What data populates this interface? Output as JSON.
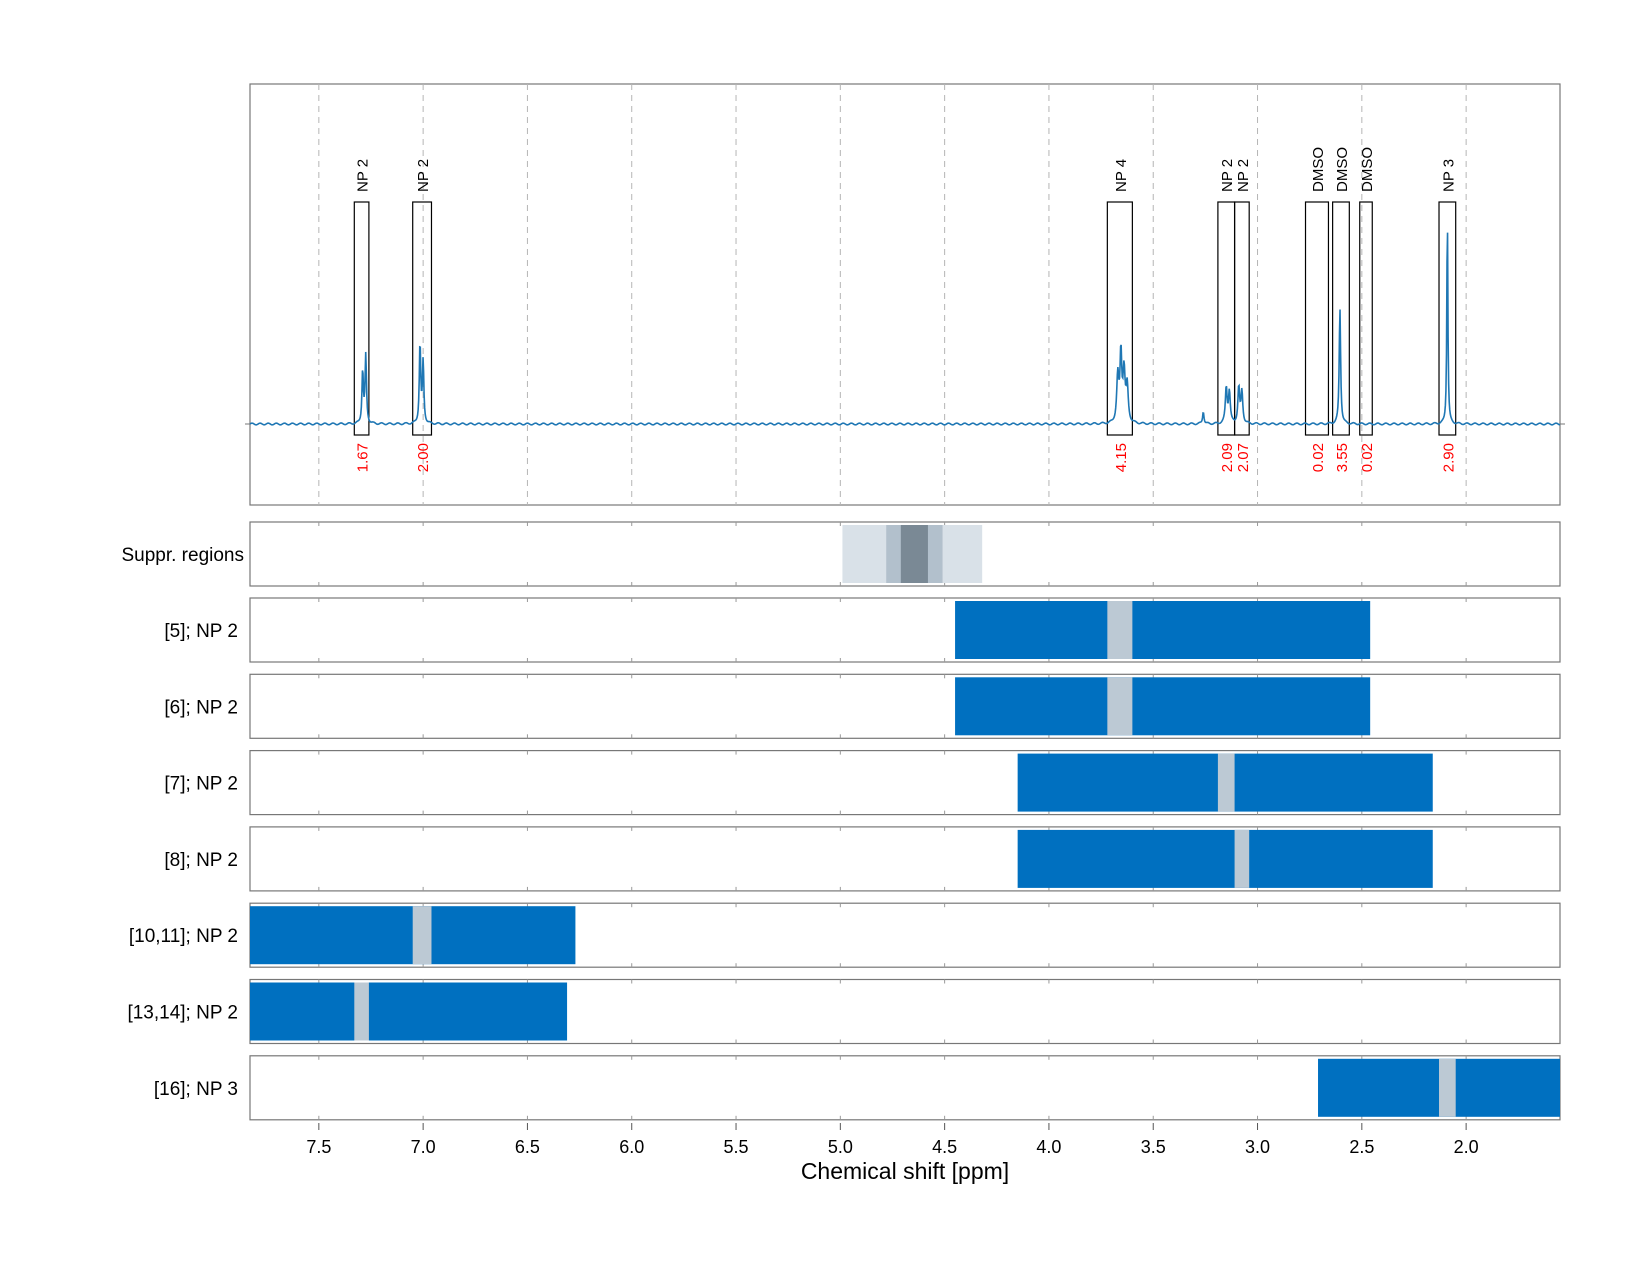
{
  "chart_data": {
    "type": "nmr-spectrum-with-fit-ranges",
    "xlabel": "Chemical shift [ppm]",
    "xlim": [
      7.83,
      1.55
    ],
    "x_axis_reversed": true,
    "x_ticks": [
      7.5,
      7.0,
      6.5,
      6.0,
      5.5,
      5.0,
      4.5,
      4.0,
      3.5,
      3.0,
      2.5,
      2.0
    ],
    "x_tick_labels": [
      "7.5",
      "7.0",
      "6.5",
      "6.0",
      "5.5",
      "5.0",
      "4.5",
      "4.0",
      "3.5",
      "3.0",
      "2.5",
      "2.0"
    ],
    "grid": "vertical dashed",
    "colors": {
      "spectrum": "#1f77b4",
      "range_bar": "#0070c0",
      "signal_gap": "#bcc9d4",
      "integral_text": "#ff0000",
      "suppr_light": "#d9e1e8",
      "suppr_mid": "#b2c0cc",
      "suppr_dark": "#7a8995"
    },
    "spectrum": {
      "baseline": 0,
      "peaks": [
        {
          "ppm": 7.29,
          "height": 0.25,
          "width": 0.004
        },
        {
          "ppm": 7.275,
          "height": 0.32,
          "width": 0.004
        },
        {
          "ppm": 7.015,
          "height": 0.38,
          "width": 0.004
        },
        {
          "ppm": 7.0,
          "height": 0.29,
          "width": 0.004
        },
        {
          "ppm": 3.67,
          "height": 0.22,
          "width": 0.006
        },
        {
          "ppm": 3.655,
          "height": 0.32,
          "width": 0.005
        },
        {
          "ppm": 3.64,
          "height": 0.24,
          "width": 0.006
        },
        {
          "ppm": 3.625,
          "height": 0.17,
          "width": 0.006
        },
        {
          "ppm": 3.26,
          "height": 0.06,
          "width": 0.004
        },
        {
          "ppm": 3.15,
          "height": 0.17,
          "width": 0.005
        },
        {
          "ppm": 3.135,
          "height": 0.15,
          "width": 0.005
        },
        {
          "ppm": 3.09,
          "height": 0.17,
          "width": 0.005
        },
        {
          "ppm": 3.075,
          "height": 0.15,
          "width": 0.005
        },
        {
          "ppm": 2.605,
          "height": 0.55,
          "width": 0.004
        },
        {
          "ppm": 2.09,
          "height": 1.0,
          "width": 0.003
        }
      ]
    },
    "integration_boxes": [
      {
        "label": "NP 2",
        "from": 7.33,
        "to": 7.26,
        "integral": "1.67"
      },
      {
        "label": "NP 2",
        "from": 7.05,
        "to": 6.96,
        "integral": "2.00"
      },
      {
        "label": "NP 4",
        "from": 3.72,
        "to": 3.6,
        "integral": "4.15"
      },
      {
        "label": "NP 2",
        "from": 3.19,
        "to": 3.11,
        "integral": "2.09"
      },
      {
        "label": "NP 2",
        "from": 3.11,
        "to": 3.04,
        "integral": "2.07"
      },
      {
        "label": "DMSO",
        "from": 2.77,
        "to": 2.66,
        "integral": "0.02"
      },
      {
        "label": "DMSO",
        "from": 2.64,
        "to": 2.56,
        "integral": "3.55"
      },
      {
        "label": "DMSO",
        "from": 2.51,
        "to": 2.45,
        "integral": "0.02"
      },
      {
        "label": "NP 3",
        "from": 2.13,
        "to": 2.05,
        "integral": "2.90"
      }
    ],
    "suppression_label": "Suppr. regions",
    "suppression_regions": [
      {
        "from": 4.99,
        "to": 4.32,
        "shade": "light"
      },
      {
        "from": 4.78,
        "to": 4.51,
        "shade": "mid"
      },
      {
        "from": 4.71,
        "to": 4.58,
        "shade": "dark"
      }
    ],
    "fit_ranges": [
      {
        "label": "[5]; NP 2",
        "from": 4.45,
        "to": 2.46,
        "signal_from": 3.72,
        "signal_to": 3.6
      },
      {
        "label": "[6]; NP 2",
        "from": 4.45,
        "to": 2.46,
        "signal_from": 3.72,
        "signal_to": 3.6
      },
      {
        "label": "[7]; NP 2",
        "from": 4.15,
        "to": 2.16,
        "signal_from": 3.19,
        "signal_to": 3.11
      },
      {
        "label": "[8]; NP 2",
        "from": 4.15,
        "to": 2.16,
        "signal_from": 3.11,
        "signal_to": 3.04
      },
      {
        "label": "[10,11]; NP 2",
        "from": 7.83,
        "to": 6.27,
        "signal_from": 7.05,
        "signal_to": 6.96
      },
      {
        "label": "[13,14]; NP 2",
        "from": 7.83,
        "to": 6.31,
        "signal_from": 7.33,
        "signal_to": 7.26
      },
      {
        "label": "[16]; NP 3",
        "from": 2.71,
        "to": 1.55,
        "signal_from": 2.13,
        "signal_to": 2.05
      }
    ]
  }
}
